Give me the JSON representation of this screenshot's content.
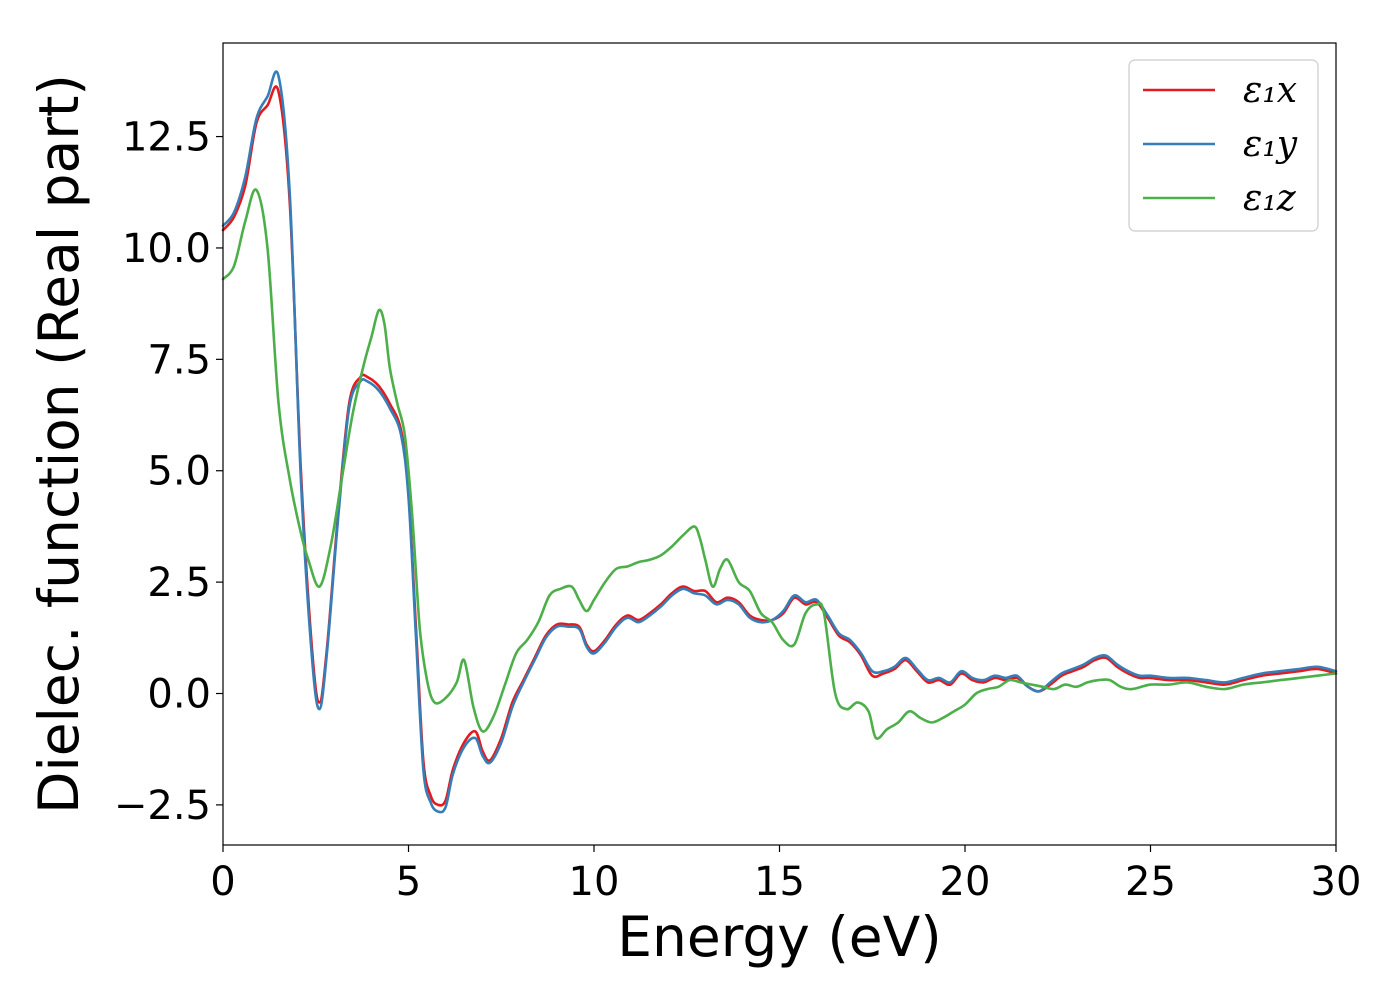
{
  "chart_data": {
    "type": "line",
    "title": "",
    "xlabel": "Energy (eV)",
    "ylabel": "Dielec. function (Real part)",
    "xlim": [
      0,
      30
    ],
    "ylim": [
      -3.4,
      14.6
    ],
    "xticks": [
      0,
      5,
      10,
      15,
      20,
      25,
      30
    ],
    "xtick_labels": [
      "0",
      "5",
      "10",
      "15",
      "20",
      "25",
      "30"
    ],
    "yticks": [
      -2.5,
      0.0,
      2.5,
      5.0,
      7.5,
      10.0,
      12.5
    ],
    "ytick_labels": [
      "−2.5",
      "0.0",
      "2.5",
      "5.0",
      "7.5",
      "10.0",
      "12.5"
    ],
    "grid": false,
    "legend_position": "top-right",
    "series": [
      {
        "name": "ε₁x",
        "color": "#e41a1c",
        "x": [
          0,
          0.3,
          0.6,
          0.9,
          1.2,
          1.5,
          1.8,
          2.1,
          2.4,
          2.6,
          2.8,
          3.1,
          3.4,
          3.7,
          3.9,
          4.2,
          4.5,
          4.8,
          5.0,
          5.2,
          5.4,
          5.6,
          5.8,
          6.0,
          6.2,
          6.5,
          6.8,
          7.0,
          7.2,
          7.5,
          7.8,
          8.1,
          8.4,
          8.7,
          9.0,
          9.3,
          9.6,
          9.8,
          10.0,
          10.3,
          10.6,
          10.9,
          11.2,
          11.5,
          11.8,
          12.1,
          12.4,
          12.7,
          13.0,
          13.3,
          13.6,
          13.9,
          14.2,
          14.5,
          14.8,
          15.1,
          15.4,
          15.7,
          16.0,
          16.3,
          16.6,
          16.9,
          17.2,
          17.5,
          17.8,
          18.1,
          18.4,
          18.7,
          19.0,
          19.3,
          19.6,
          19.9,
          20.2,
          20.5,
          20.8,
          21.1,
          21.4,
          21.7,
          22.0,
          22.3,
          22.6,
          22.9,
          23.2,
          23.5,
          23.8,
          24.1,
          24.4,
          24.7,
          25.0,
          25.5,
          26.0,
          26.5,
          27.0,
          27.5,
          28.0,
          28.5,
          29.0,
          29.5,
          30.0
        ],
        "values": [
          10.4,
          10.7,
          11.4,
          12.8,
          13.2,
          13.5,
          11.0,
          5.0,
          1.0,
          -0.2,
          1.0,
          4.0,
          6.5,
          7.1,
          7.1,
          6.9,
          6.5,
          5.9,
          4.5,
          1.5,
          -1.5,
          -2.3,
          -2.5,
          -2.4,
          -1.7,
          -1.1,
          -0.85,
          -1.3,
          -1.5,
          -1.0,
          -0.2,
          0.3,
          0.8,
          1.3,
          1.55,
          1.55,
          1.5,
          1.1,
          0.95,
          1.2,
          1.55,
          1.75,
          1.65,
          1.8,
          2.0,
          2.25,
          2.4,
          2.3,
          2.3,
          2.05,
          2.15,
          2.05,
          1.75,
          1.65,
          1.65,
          1.8,
          2.15,
          2.0,
          2.05,
          1.7,
          1.3,
          1.15,
          0.85,
          0.4,
          0.45,
          0.55,
          0.75,
          0.5,
          0.25,
          0.3,
          0.2,
          0.45,
          0.3,
          0.25,
          0.35,
          0.3,
          0.35,
          0.15,
          0.05,
          0.2,
          0.4,
          0.5,
          0.6,
          0.75,
          0.8,
          0.6,
          0.45,
          0.35,
          0.35,
          0.3,
          0.3,
          0.25,
          0.2,
          0.3,
          0.4,
          0.45,
          0.5,
          0.55,
          0.45
        ]
      },
      {
        "name": "ε₁y",
        "color": "#377eb8",
        "x": [
          0,
          0.3,
          0.6,
          0.9,
          1.2,
          1.5,
          1.8,
          2.1,
          2.4,
          2.6,
          2.8,
          3.1,
          3.4,
          3.7,
          3.9,
          4.2,
          4.5,
          4.8,
          5.0,
          5.2,
          5.4,
          5.6,
          5.8,
          6.0,
          6.2,
          6.5,
          6.8,
          7.0,
          7.2,
          7.5,
          7.8,
          8.1,
          8.4,
          8.7,
          9.0,
          9.3,
          9.6,
          9.8,
          10.0,
          10.3,
          10.6,
          10.9,
          11.2,
          11.5,
          11.8,
          12.1,
          12.4,
          12.7,
          13.0,
          13.3,
          13.6,
          13.9,
          14.2,
          14.5,
          14.8,
          15.1,
          15.4,
          15.7,
          16.0,
          16.3,
          16.6,
          16.9,
          17.2,
          17.5,
          17.8,
          18.1,
          18.4,
          18.7,
          19.0,
          19.3,
          19.6,
          19.9,
          20.2,
          20.5,
          20.8,
          21.1,
          21.4,
          21.7,
          22.0,
          22.3,
          22.6,
          22.9,
          23.2,
          23.5,
          23.8,
          24.1,
          24.4,
          24.7,
          25.0,
          25.5,
          26.0,
          26.5,
          27.0,
          27.5,
          28.0,
          28.5,
          29.0,
          29.5,
          30.0
        ],
        "values": [
          10.5,
          10.8,
          11.6,
          12.9,
          13.4,
          13.85,
          11.2,
          4.8,
          0.8,
          -0.35,
          0.9,
          3.9,
          6.4,
          7.0,
          7.0,
          6.8,
          6.4,
          5.8,
          4.4,
          1.3,
          -1.7,
          -2.45,
          -2.65,
          -2.55,
          -1.8,
          -1.2,
          -1.0,
          -1.4,
          -1.55,
          -1.1,
          -0.3,
          0.25,
          0.75,
          1.25,
          1.5,
          1.5,
          1.45,
          1.05,
          0.9,
          1.15,
          1.5,
          1.7,
          1.6,
          1.75,
          1.95,
          2.2,
          2.35,
          2.25,
          2.2,
          2.0,
          2.1,
          2.0,
          1.7,
          1.6,
          1.65,
          1.85,
          2.2,
          2.05,
          2.1,
          1.75,
          1.35,
          1.2,
          0.9,
          0.5,
          0.5,
          0.6,
          0.8,
          0.55,
          0.3,
          0.35,
          0.25,
          0.5,
          0.35,
          0.3,
          0.4,
          0.35,
          0.4,
          0.15,
          0.05,
          0.25,
          0.45,
          0.55,
          0.65,
          0.8,
          0.85,
          0.65,
          0.5,
          0.4,
          0.4,
          0.35,
          0.35,
          0.3,
          0.25,
          0.35,
          0.45,
          0.5,
          0.55,
          0.6,
          0.5
        ]
      },
      {
        "name": "ε₁z",
        "color": "#4daf4a",
        "x": [
          0,
          0.3,
          0.6,
          0.9,
          1.2,
          1.5,
          1.8,
          2.1,
          2.3,
          2.6,
          2.9,
          3.2,
          3.5,
          3.8,
          4.0,
          4.2,
          4.35,
          4.5,
          4.7,
          4.9,
          5.1,
          5.3,
          5.5,
          5.7,
          6.0,
          6.3,
          6.5,
          6.75,
          7.0,
          7.3,
          7.6,
          7.9,
          8.2,
          8.5,
          8.8,
          9.1,
          9.4,
          9.6,
          9.8,
          10.0,
          10.3,
          10.6,
          10.9,
          11.2,
          11.5,
          11.8,
          12.1,
          12.4,
          12.7,
          12.85,
          13.0,
          13.2,
          13.4,
          13.6,
          13.9,
          14.2,
          14.5,
          14.8,
          15.1,
          15.4,
          15.7,
          16.0,
          16.2,
          16.5,
          16.8,
          17.1,
          17.4,
          17.6,
          17.9,
          18.2,
          18.5,
          18.8,
          19.1,
          19.4,
          19.7,
          20.0,
          20.3,
          20.6,
          20.9,
          21.2,
          21.5,
          21.8,
          22.1,
          22.4,
          22.7,
          23.0,
          23.3,
          23.6,
          23.9,
          24.2,
          24.5,
          25.0,
          25.5,
          26.0,
          26.5,
          27.0,
          27.5,
          28.0,
          28.5,
          29.0,
          29.5,
          30.0
        ],
        "values": [
          9.3,
          9.6,
          10.6,
          11.3,
          10.0,
          6.5,
          4.8,
          3.6,
          3.0,
          2.4,
          3.3,
          4.8,
          6.3,
          7.4,
          8.0,
          8.6,
          8.3,
          7.3,
          6.5,
          5.8,
          4.0,
          1.5,
          0.3,
          -0.2,
          -0.1,
          0.25,
          0.75,
          -0.3,
          -0.85,
          -0.5,
          0.2,
          0.9,
          1.2,
          1.6,
          2.2,
          2.35,
          2.4,
          2.1,
          1.85,
          2.1,
          2.5,
          2.8,
          2.85,
          2.95,
          3.0,
          3.1,
          3.3,
          3.55,
          3.75,
          3.5,
          3.0,
          2.4,
          2.8,
          3.0,
          2.5,
          2.3,
          1.8,
          1.6,
          1.2,
          1.1,
          1.8,
          2.0,
          1.8,
          0.0,
          -0.35,
          -0.2,
          -0.4,
          -1.0,
          -0.8,
          -0.65,
          -0.4,
          -0.55,
          -0.65,
          -0.55,
          -0.4,
          -0.25,
          0.0,
          0.1,
          0.15,
          0.3,
          0.25,
          0.2,
          0.15,
          0.1,
          0.2,
          0.15,
          0.25,
          0.3,
          0.3,
          0.15,
          0.1,
          0.2,
          0.2,
          0.25,
          0.15,
          0.1,
          0.2,
          0.25,
          0.3,
          0.35,
          0.4,
          0.45
        ]
      }
    ]
  }
}
